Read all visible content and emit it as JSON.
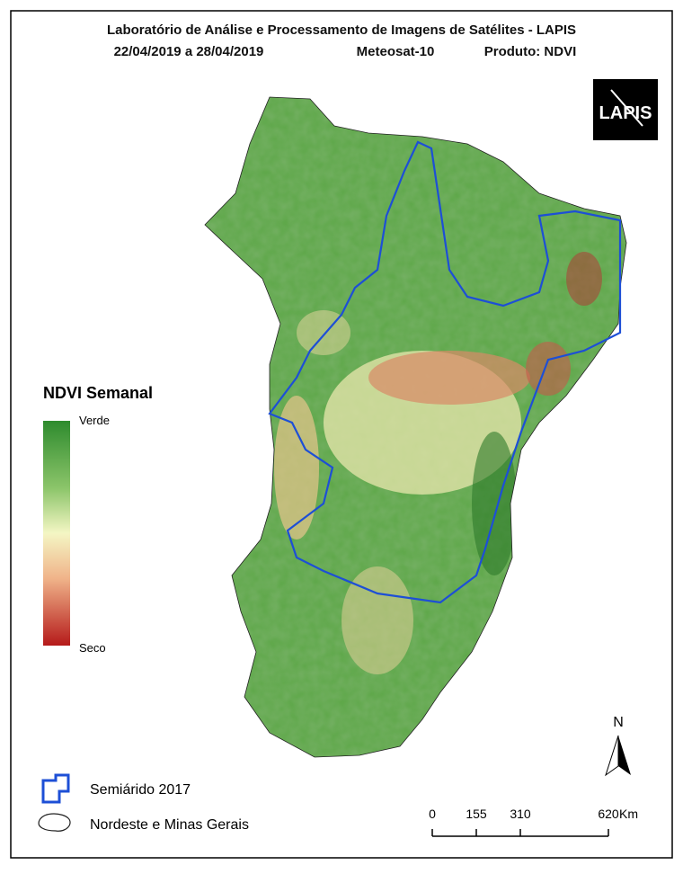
{
  "header": {
    "line1": "Laboratório de Análise e Processamento de Imagens de Satélites - LAPIS",
    "date_range": "22/04/2019  a 28/04/2019",
    "satellite": "Meteosat-10",
    "product": "Produto: NDVI"
  },
  "logo": "LAPIS",
  "legend": {
    "title": "NDVI Semanal",
    "high": "Verde",
    "low": "Seco",
    "entries": [
      "Semiárido 2017",
      "Nordeste e Minas Gerais"
    ]
  },
  "north": "N",
  "scale_bar": {
    "ticks": [
      0,
      155,
      310,
      620
    ],
    "unit": "Km"
  }
}
